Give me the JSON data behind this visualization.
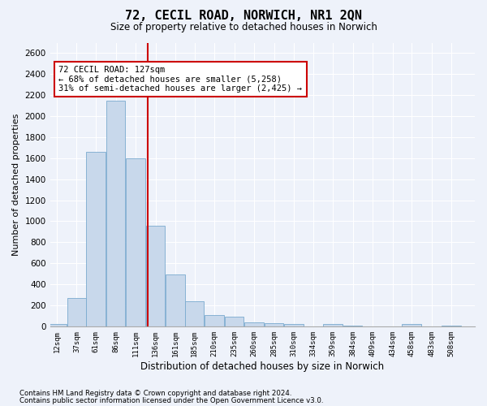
{
  "title": "72, CECIL ROAD, NORWICH, NR1 2QN",
  "subtitle": "Size of property relative to detached houses in Norwich",
  "xlabel": "Distribution of detached houses by size in Norwich",
  "ylabel": "Number of detached properties",
  "footnote1": "Contains HM Land Registry data © Crown copyright and database right 2024.",
  "footnote2": "Contains public sector information licensed under the Open Government Licence v3.0.",
  "annotation_line1": "72 CECIL ROAD: 127sqm",
  "annotation_line2": "← 68% of detached houses are smaller (5,258)",
  "annotation_line3": "31% of semi-detached houses are larger (2,425) →",
  "property_size": 127,
  "bar_color": "#c8d8eb",
  "bar_edge_color": "#7aaacf",
  "vline_color": "#cc0000",
  "annotation_box_color": "#cc0000",
  "bin_labels": [
    "12sqm",
    "37sqm",
    "61sqm",
    "86sqm",
    "111sqm",
    "136sqm",
    "161sqm",
    "185sqm",
    "210sqm",
    "235sqm",
    "260sqm",
    "285sqm",
    "310sqm",
    "334sqm",
    "359sqm",
    "384sqm",
    "409sqm",
    "434sqm",
    "458sqm",
    "483sqm",
    "508sqm"
  ],
  "bin_edges": [
    12,
    37,
    61,
    86,
    111,
    136,
    161,
    185,
    210,
    235,
    260,
    285,
    310,
    334,
    359,
    384,
    409,
    434,
    458,
    483,
    508
  ],
  "bar_values": [
    20,
    270,
    1660,
    2150,
    1600,
    960,
    490,
    240,
    110,
    90,
    35,
    30,
    20,
    0,
    20,
    10,
    0,
    0,
    20,
    0,
    10
  ],
  "ylim": [
    0,
    2700
  ],
  "yticks": [
    0,
    200,
    400,
    600,
    800,
    1000,
    1200,
    1400,
    1600,
    1800,
    2000,
    2200,
    2400,
    2600
  ],
  "background_color": "#eef2fa",
  "plot_bg_color": "#eef2fa",
  "grid_color": "#ffffff"
}
